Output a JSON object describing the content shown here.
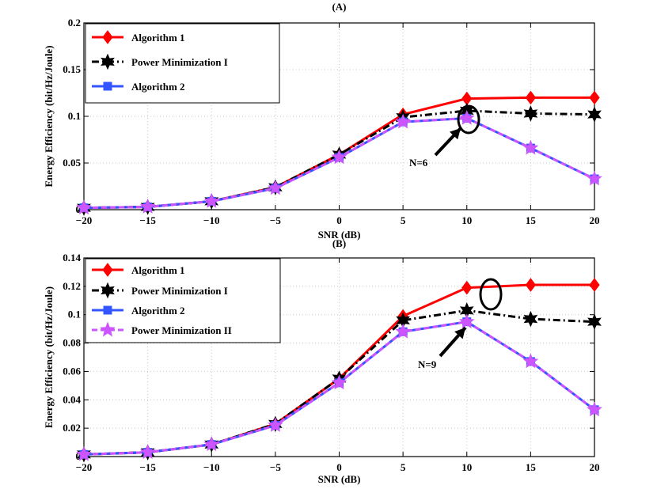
{
  "chart_data": [
    {
      "type": "line",
      "title": "(A)",
      "xlabel": "SNR (dB)",
      "ylabel": "Energy Efficiency (bit/Hz/Joule)",
      "x": [
        -20,
        -15,
        -10,
        -5,
        0,
        5,
        10,
        15,
        20
      ],
      "xlim": [
        -20,
        20
      ],
      "ylim": [
        0,
        0.2
      ],
      "xticks": [
        "−20",
        "−15",
        "−10",
        "−5",
        "0",
        "5",
        "10",
        "15",
        "20"
      ],
      "yticks": [
        "0",
        "0.05",
        "0.1",
        "0.15",
        "0.2"
      ],
      "grid": true,
      "legend_position": "top-left",
      "series": [
        {
          "name": "Algorithm 1",
          "color": "#ff0000",
          "marker": "diamond",
          "dash": "solid",
          "values": [
            0.002,
            0.003,
            0.009,
            0.024,
            0.059,
            0.102,
            0.119,
            0.12,
            0.12
          ]
        },
        {
          "name": "Power Minimization I",
          "color": "#000000",
          "marker": "hexagram",
          "dash": "dashdot",
          "values": [
            0.002,
            0.003,
            0.009,
            0.024,
            0.059,
            0.099,
            0.106,
            0.103,
            0.102
          ]
        },
        {
          "name": "Algorithm 2",
          "color": "#3355ff",
          "marker": "square",
          "dash": "solid",
          "values": [
            0.002,
            0.003,
            0.009,
            0.023,
            0.056,
            0.094,
            0.098,
            0.066,
            0.033
          ]
        },
        {
          "name": "Power Minimization II",
          "color": "#cc55ff",
          "marker": "pentagram",
          "dash": "dashed",
          "legend": false,
          "values": [
            0.002,
            0.003,
            0.009,
            0.023,
            0.056,
            0.094,
            0.098,
            0.066,
            0.033
          ]
        }
      ],
      "annotation": {
        "text": "N=6",
        "target_x": 10,
        "target_y": 0.099
      }
    },
    {
      "type": "line",
      "title": "(B)",
      "xlabel": "SNR (dB)",
      "ylabel": "Energy Efficiency (bit/Hz/Joule)",
      "x": [
        -20,
        -15,
        -10,
        -5,
        0,
        5,
        10,
        15,
        20
      ],
      "xlim": [
        -20,
        20
      ],
      "ylim": [
        0,
        0.14
      ],
      "xticks": [
        "−20",
        "−15",
        "−10",
        "−5",
        "0",
        "5",
        "10",
        "15",
        "20"
      ],
      "yticks": [
        "0",
        "0.02",
        "0.04",
        "0.06",
        "0.08",
        "0.1",
        "0.12",
        "0.14"
      ],
      "grid": true,
      "legend_position": "top-left",
      "series": [
        {
          "name": "Algorithm 1",
          "color": "#ff0000",
          "marker": "diamond",
          "dash": "solid",
          "values": [
            0.0015,
            0.003,
            0.0085,
            0.023,
            0.055,
            0.099,
            0.119,
            0.121,
            0.121
          ]
        },
        {
          "name": "Power Minimization I",
          "color": "#000000",
          "marker": "hexagram",
          "dash": "dashdot",
          "values": [
            0.0015,
            0.003,
            0.0085,
            0.023,
            0.055,
            0.096,
            0.103,
            0.097,
            0.095
          ]
        },
        {
          "name": "Algorithm 2",
          "color": "#3355ff",
          "marker": "square",
          "dash": "solid",
          "values": [
            0.0015,
            0.003,
            0.0085,
            0.022,
            0.052,
            0.088,
            0.095,
            0.067,
            0.033
          ]
        },
        {
          "name": "Power Minimization II",
          "color": "#cc55ff",
          "marker": "pentagram",
          "dash": "dashed",
          "values": [
            0.0015,
            0.003,
            0.0085,
            0.022,
            0.052,
            0.088,
            0.095,
            0.067,
            0.033
          ]
        }
      ],
      "annotation": {
        "text": "N=9",
        "target_x": 10,
        "target_y": 0.096
      }
    }
  ]
}
